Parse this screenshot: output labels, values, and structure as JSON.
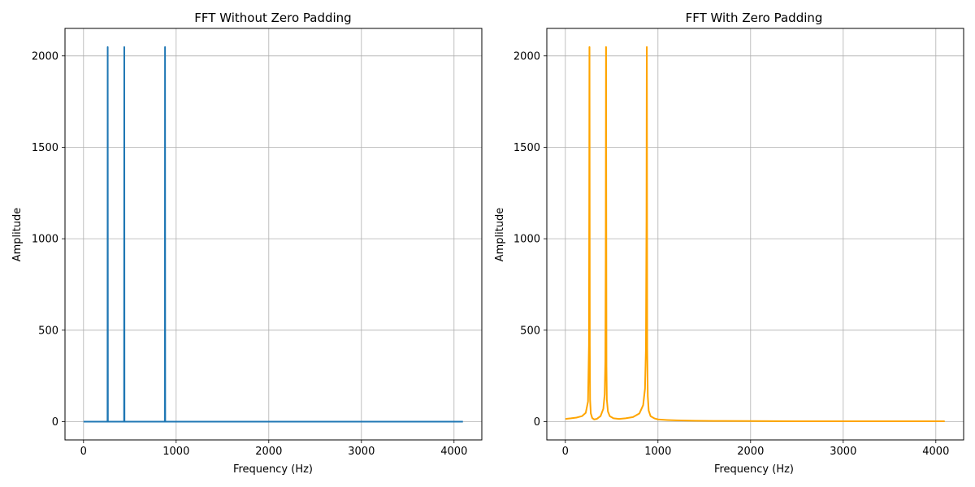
{
  "chart_data": [
    {
      "type": "line",
      "title": "FFT Without Zero Padding",
      "xlabel": "Frequency (Hz)",
      "ylabel": "Amplitude",
      "xlim": [
        -200,
        4300
      ],
      "ylim": [
        -100,
        2150
      ],
      "xticks": [
        0,
        1000,
        2000,
        3000,
        4000
      ],
      "yticks": [
        0,
        500,
        1000,
        1500,
        2000
      ],
      "grid": true,
      "series": [
        {
          "color": "#1f77b4",
          "x": [
            0,
            259,
            261,
            261,
            263,
            438,
            440,
            440,
            442,
            878,
            880,
            880,
            882,
            4096
          ],
          "y": [
            0,
            0,
            2048,
            2048,
            0,
            0,
            2048,
            2048,
            0,
            0,
            2048,
            2048,
            0,
            0
          ]
        }
      ]
    },
    {
      "type": "line",
      "title": "FFT With Zero Padding",
      "xlabel": "Frequency (Hz)",
      "ylabel": "Amplitude",
      "xlim": [
        -200,
        4300
      ],
      "ylim": [
        -100,
        2150
      ],
      "xticks": [
        0,
        1000,
        2000,
        3000,
        4000
      ],
      "yticks": [
        0,
        500,
        1000,
        1500,
        2000
      ],
      "grid": true,
      "series": [
        {
          "color": "#ffa500",
          "x": [
            0,
            60,
            120,
            180,
            220,
            245,
            255,
            258,
            260,
            261,
            262,
            264,
            267,
            275,
            290,
            310,
            340,
            380,
            410,
            425,
            432,
            436,
            439,
            440,
            441,
            444,
            448,
            460,
            480,
            520,
            580,
            650,
            730,
            800,
            840,
            860,
            870,
            876,
            879,
            880,
            881,
            884,
            890,
            900,
            920,
            960,
            1000,
            1100,
            1200,
            1400,
            1600,
            2000,
            2500,
            3000,
            3500,
            4096
          ],
          "y": [
            15,
            18,
            22,
            30,
            48,
            110,
            420,
            1200,
            2048,
            2048,
            1500,
            420,
            120,
            45,
            20,
            12,
            15,
            30,
            70,
            150,
            330,
            900,
            2048,
            2048,
            1500,
            300,
            120,
            55,
            30,
            18,
            15,
            18,
            25,
            45,
            90,
            180,
            400,
            1100,
            2048,
            2048,
            1800,
            400,
            140,
            60,
            30,
            18,
            12,
            9,
            7,
            5,
            4,
            3,
            2,
            2,
            2,
            2
          ]
        }
      ]
    }
  ]
}
